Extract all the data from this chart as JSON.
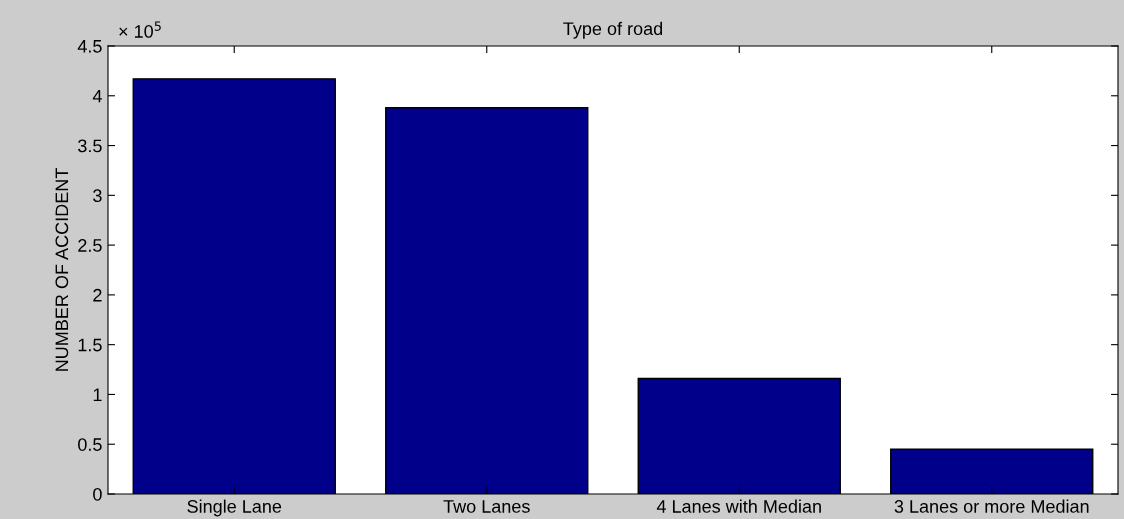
{
  "chart_data": {
    "type": "bar",
    "title": "Type of road",
    "ylabel": "NUMBER OF ACCIDENT",
    "categories": [
      "Single Lane",
      "Two Lanes",
      "4 Lanes with Median",
      "3 Lanes or more Median"
    ],
    "values": [
      4.17,
      3.88,
      1.16,
      0.45
    ],
    "color": "#00008b",
    "ylim": [
      0,
      4.5
    ],
    "yticks": [
      0,
      0.5,
      1,
      1.5,
      2,
      2.5,
      3,
      3.5,
      4,
      4.5
    ],
    "annotations": [
      "× 10$^{5}$"
    ],
    "grid": false,
    "legend": false
  }
}
